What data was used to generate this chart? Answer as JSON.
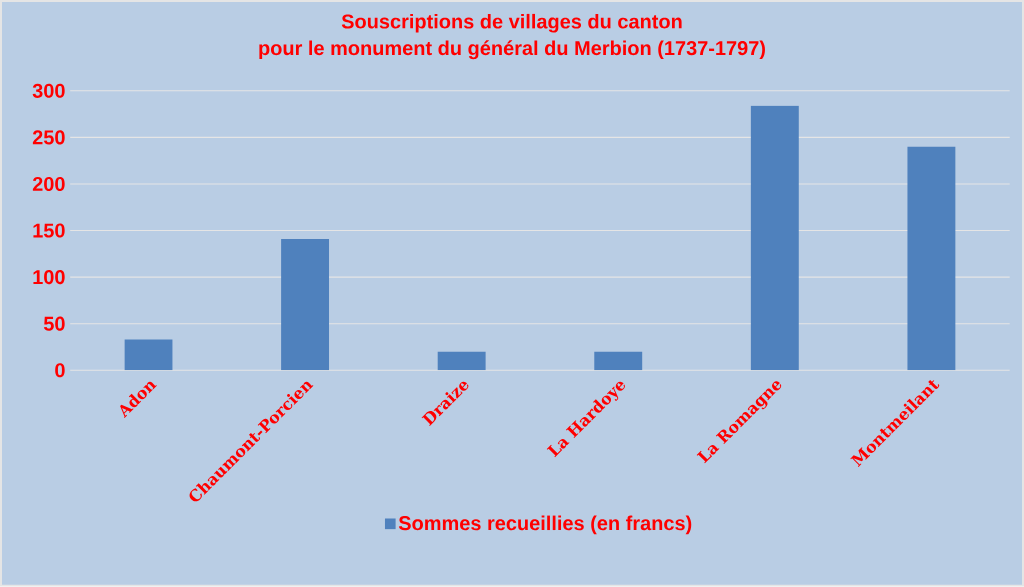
{
  "chart_data": {
    "type": "bar",
    "title": "Souscriptions de villages du canton\npour le monument du général du Merbion (1737-1797)",
    "categories": [
      "Adon",
      "Chaumont-Porcien",
      "Draize",
      "La Hardoye",
      "La Romagne",
      "Montmeilant"
    ],
    "series": [
      {
        "name": "Sommes recueillies (en francs)",
        "color": "#4f81bd",
        "values": [
          33,
          141,
          20,
          20,
          284,
          240
        ]
      }
    ],
    "ylim": [
      0,
      300
    ],
    "yticks": [
      0,
      50,
      100,
      150,
      200,
      250,
      300
    ],
    "grid": "y",
    "legend": "bottom"
  }
}
